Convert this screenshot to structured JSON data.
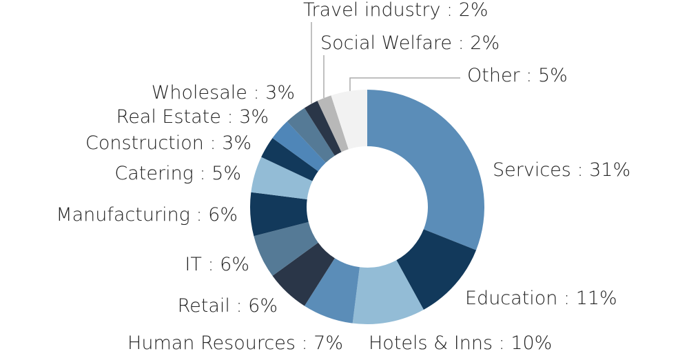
{
  "chart_data": {
    "type": "donut",
    "separator": " : ",
    "categories": [
      "Services",
      "Education",
      "Hotels & Inns",
      "Human Resources",
      "Retail",
      "IT",
      "Manufacturing",
      "Catering",
      "Construction",
      "Real Estate",
      "Wholesale",
      "Travel industry",
      "Social Welfare",
      "Other"
    ],
    "values": [
      31,
      11,
      10,
      7,
      6,
      6,
      6,
      5,
      3,
      3,
      3,
      2,
      2,
      5
    ],
    "value_labels": [
      "31%",
      "11%",
      "10%",
      "7%",
      "6%",
      "6%",
      "6%",
      "5%",
      "3%",
      "3%",
      "3%",
      "2%",
      "2%",
      "5%"
    ],
    "colors": [
      "#5b8db8",
      "#12395b",
      "#93bcd6",
      "#5b8db8",
      "#2a3648",
      "#557a96",
      "#12395b",
      "#93bcd6",
      "#12395b",
      "#4f86b8",
      "#557a96",
      "#2a3648",
      "#b8b8b8",
      "#f2f2f2"
    ]
  }
}
